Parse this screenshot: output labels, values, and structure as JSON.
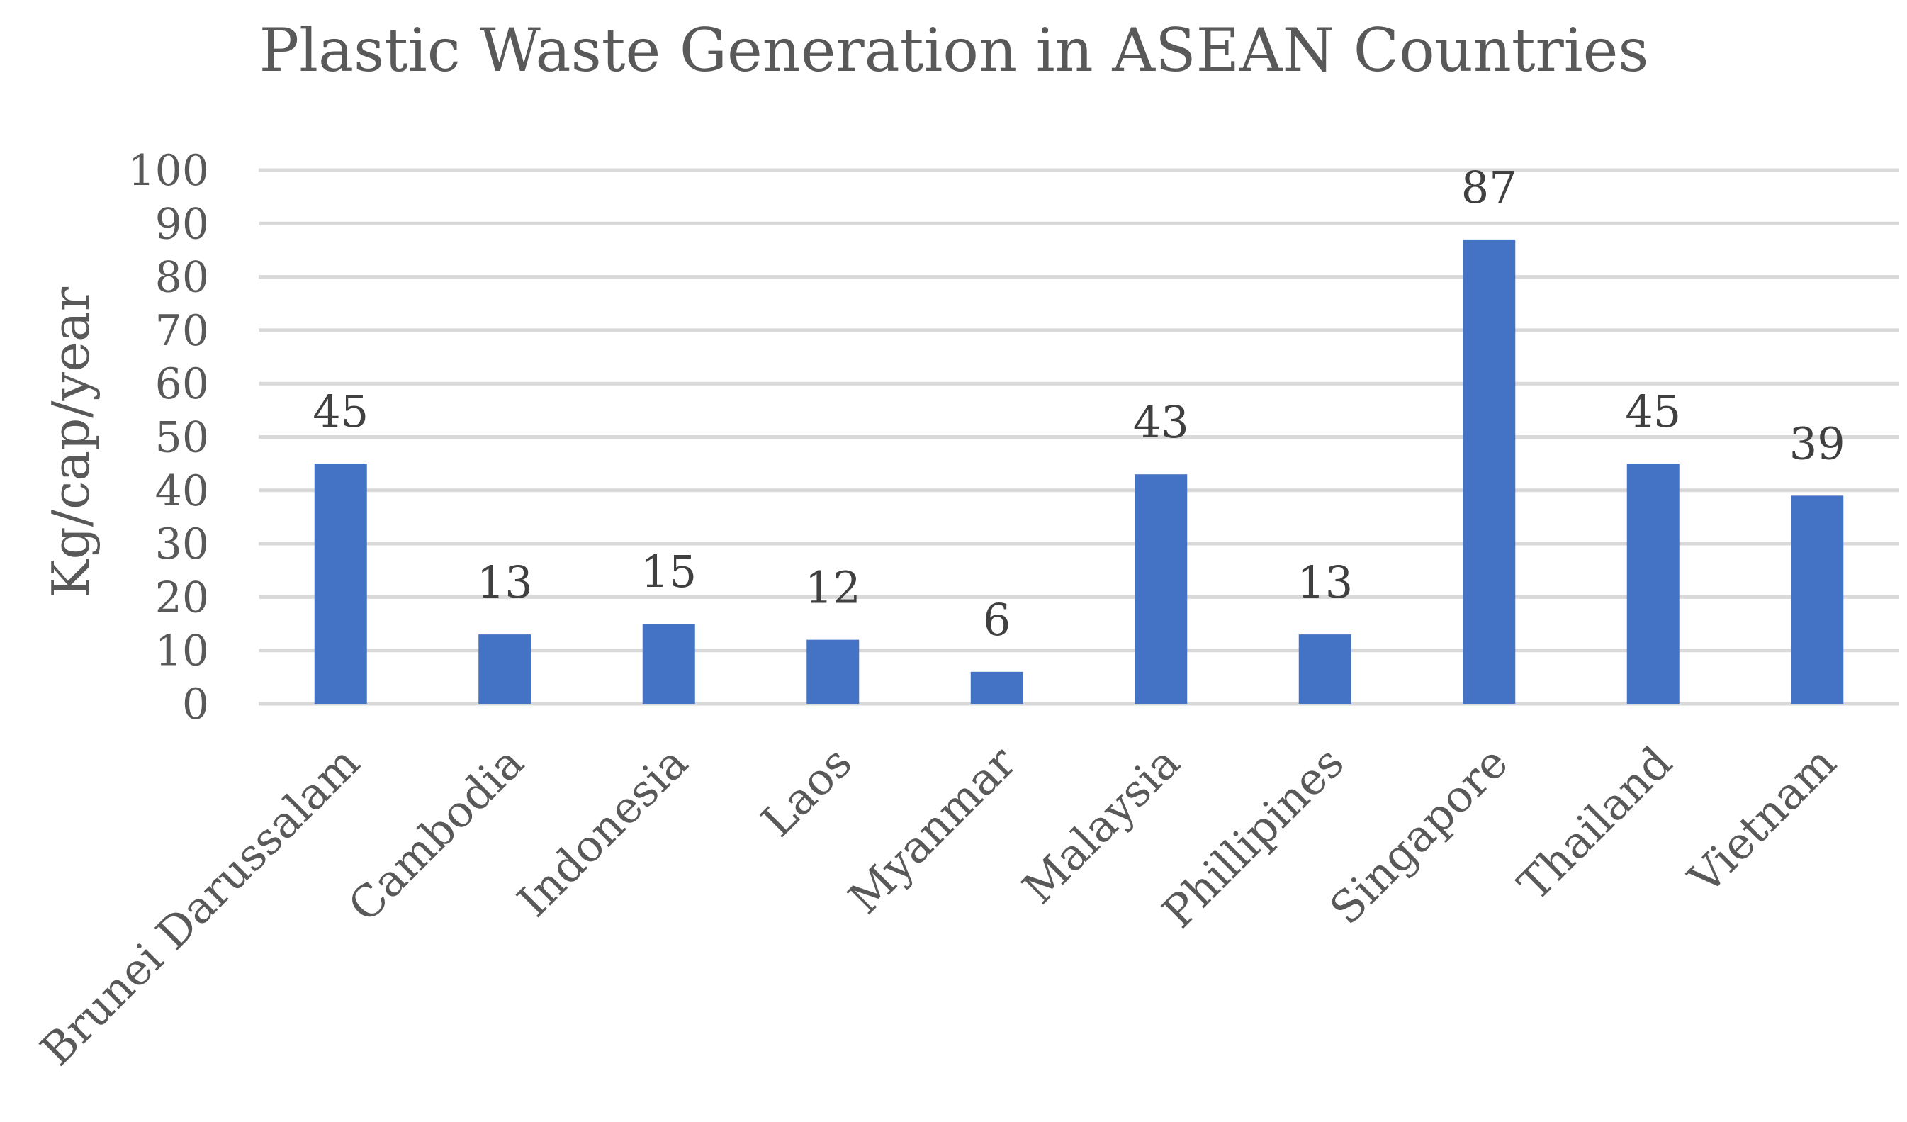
{
  "chart_data": {
    "type": "bar",
    "title": "Plastic Waste Generation in ASEAN Countries",
    "xlabel": "",
    "ylabel": "Kg/cap/year",
    "categories": [
      "Brunei Darussalam",
      "Cambodia",
      "Indonesia",
      "Laos",
      "Myanmar",
      "Malaysia",
      "Phillipines",
      "Singapore",
      "Thailand",
      "Vietnam"
    ],
    "values": [
      45,
      13,
      15,
      12,
      6,
      43,
      13,
      87,
      45,
      39
    ],
    "data_labels": [
      "45",
      "13",
      "15",
      "12",
      "6",
      "43",
      "13",
      "87",
      "45",
      "39"
    ],
    "ylim": [
      0,
      100
    ],
    "yticks": [
      0,
      10,
      20,
      30,
      40,
      50,
      60,
      70,
      80,
      90,
      100
    ],
    "ytick_labels": [
      "0",
      "10",
      "20",
      "30",
      "40",
      "50",
      "60",
      "70",
      "80",
      "90",
      "100"
    ],
    "grid": "horizontal",
    "legend": "none",
    "colors": {
      "bar": "#4472C4",
      "grid": "#D9D9D9",
      "text": "#595959"
    }
  }
}
